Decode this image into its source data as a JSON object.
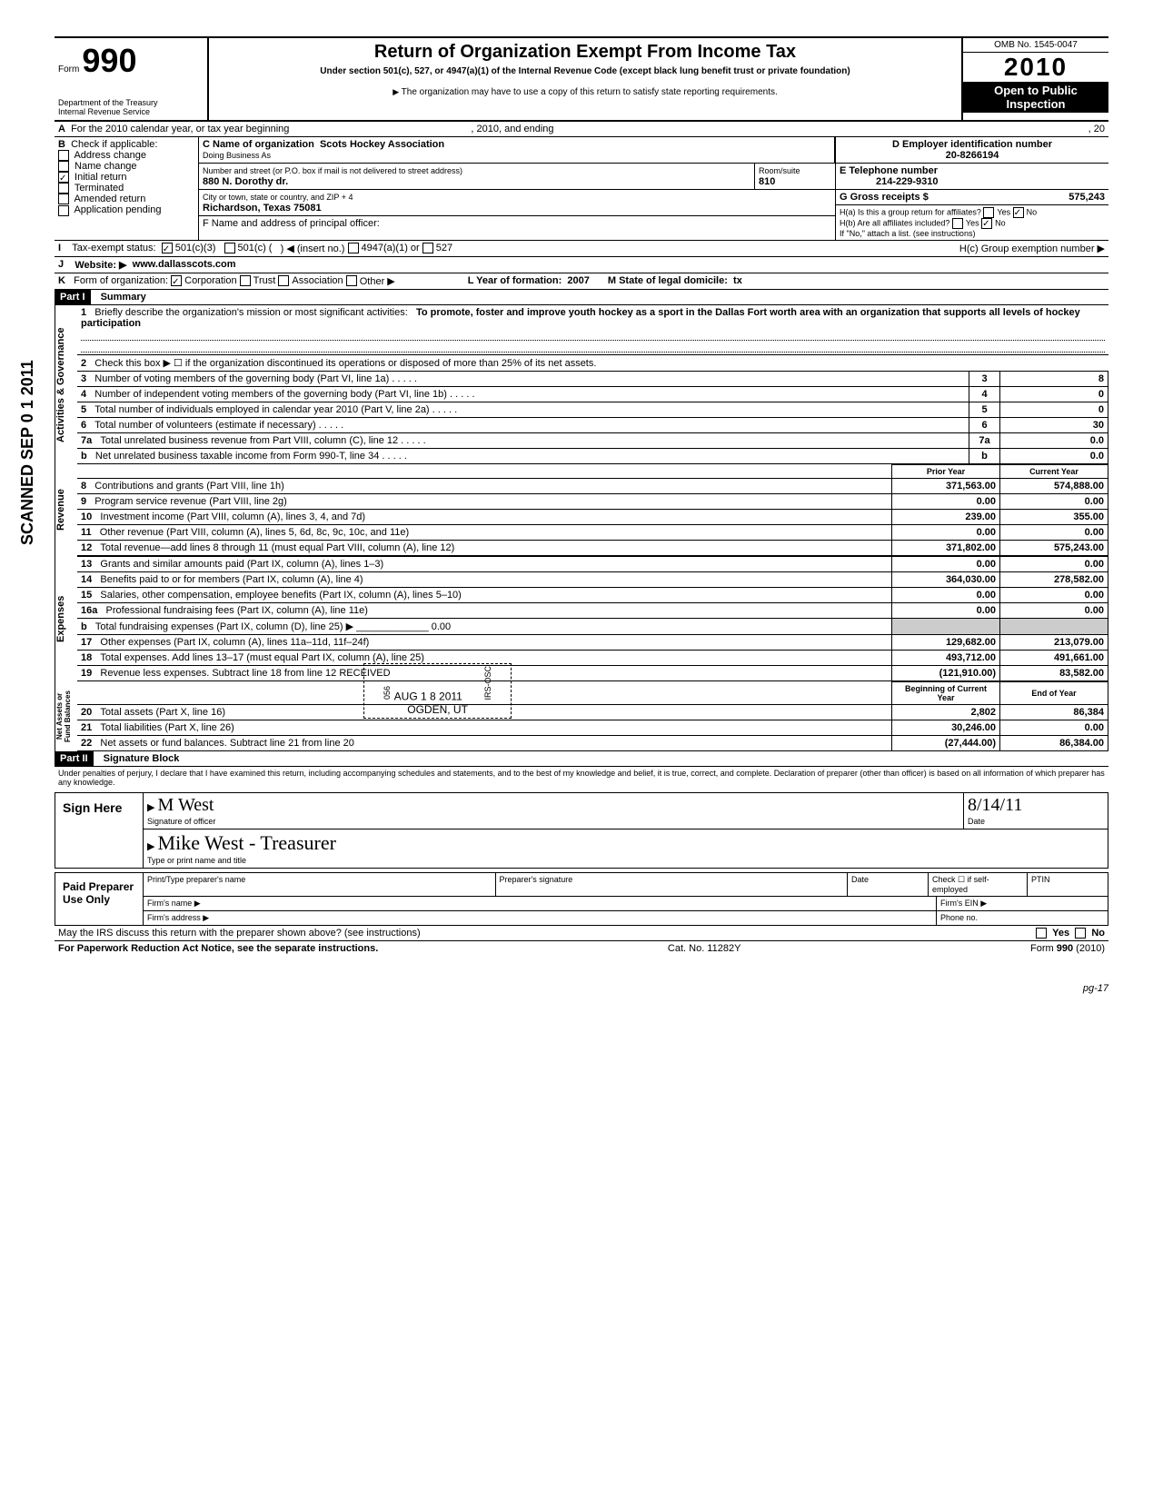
{
  "header": {
    "form_label": "Form",
    "form_number": "990",
    "title": "Return of Organization Exempt From Income Tax",
    "subtitle": "Under section 501(c), 527, or 4947(a)(1) of the Internal Revenue Code (except black lung benefit trust or private foundation)",
    "dept": "Department of the Treasury\nInternal Revenue Service",
    "copy_note": "The organization may have to use a copy of this return to satisfy state reporting requirements.",
    "omb": "OMB No. 1545-0047",
    "year": "2010",
    "open": "Open to Public",
    "inspection": "Inspection"
  },
  "scanned": "SCANNED SEP 0 1 2011",
  "lineA": {
    "text": "For the 2010 calendar year, or tax year beginning",
    "mid": ", 2010, and ending",
    "end": ", 20"
  },
  "B": {
    "label": "Check if applicable:",
    "opts": [
      "Address change",
      "Name change",
      "Initial return",
      "Terminated",
      "Amended return",
      "Application pending"
    ],
    "checked_index": 2
  },
  "C": {
    "name_label": "C Name of organization",
    "name": "Scots Hockey Association",
    "dba_label": "Doing Business As",
    "addr_label": "Number and street (or P.O. box if mail is not delivered to street address)",
    "addr": "880 N. Dorothy dr.",
    "room_label": "Room/suite",
    "room": "810",
    "city_label": "City or town, state or country, and ZIP + 4",
    "city": "Richardson, Texas 75081",
    "F_label": "F  Name and address of principal officer:"
  },
  "D": {
    "label": "D  Employer identification number",
    "value": "20-8266194"
  },
  "E": {
    "label": "E  Telephone number",
    "value": "214-229-9310"
  },
  "G": {
    "label": "G  Gross receipts $",
    "value": "575,243"
  },
  "H": {
    "a": "H(a) Is this a group return for affiliates?",
    "b": "H(b) Are all affiliates included?",
    "no_note": "If \"No,\" attach a list. (see instructions)",
    "c": "H(c)  Group exemption number ▶",
    "yes": "Yes",
    "no": "No"
  },
  "I": {
    "label": "Tax-exempt status:",
    "opt1": "501(c)(3)",
    "opt2": "501(c) (",
    "insert": ") ◀ (insert no.)",
    "opt3": "4947(a)(1) or",
    "opt4": "527"
  },
  "J": {
    "label": "Website: ▶",
    "value": "www.dallasscots.com"
  },
  "K": {
    "label": "Form of organization:",
    "corp": "Corporation",
    "trust": "Trust",
    "assoc": "Association",
    "other": "Other ▶",
    "L": "L  Year of formation:",
    "Lval": "2007",
    "M": "M State of legal domicile:",
    "Mval": "tx"
  },
  "part1": {
    "title": "Part I",
    "subtitle": "Summary",
    "line1_label": "Briefly describe the organization's mission or most significant activities:",
    "line1_text": "To promote, foster and improve youth hockey as a sport in the Dallas Fort worth area with an organization that supports all levels of hockey participation",
    "line2": "Check this box ▶ ☐ if the organization discontinued its operations or disposed of more than 25% of its net assets.",
    "rows_ag": [
      {
        "n": "3",
        "label": "Number of voting members of the governing body (Part VI, line 1a)",
        "v": "8"
      },
      {
        "n": "4",
        "label": "Number of independent voting members of the governing body (Part VI, line 1b)",
        "v": "0"
      },
      {
        "n": "5",
        "label": "Total number of individuals employed in calendar year 2010 (Part V, line 2a)",
        "v": "0"
      },
      {
        "n": "6",
        "label": "Total number of volunteers (estimate if necessary)",
        "v": "30"
      },
      {
        "n": "7a",
        "label": "Total unrelated business revenue from Part VIII, column (C), line 12",
        "v": "0.0"
      },
      {
        "n": "b",
        "label": "Net unrelated business taxable income from Form 990-T, line 34",
        "v": "0.0"
      }
    ],
    "prior": "Prior Year",
    "current": "Current Year",
    "rows_rev": [
      {
        "n": "8",
        "label": "Contributions and grants (Part VIII, line 1h)",
        "p": "371,563.00",
        "c": "574,888.00"
      },
      {
        "n": "9",
        "label": "Program service revenue (Part VIII, line 2g)",
        "p": "0.00",
        "c": "0.00"
      },
      {
        "n": "10",
        "label": "Investment income (Part VIII, column (A), lines 3, 4, and 7d)",
        "p": "239.00",
        "c": "355.00"
      },
      {
        "n": "11",
        "label": "Other revenue (Part VIII, column (A), lines 5, 6d, 8c, 9c, 10c, and 11e)",
        "p": "0.00",
        "c": "0.00"
      },
      {
        "n": "12",
        "label": "Total revenue—add lines 8 through 11 (must equal Part VIII, column (A), line 12)",
        "p": "371,802.00",
        "c": "575,243.00"
      }
    ],
    "rows_exp": [
      {
        "n": "13",
        "label": "Grants and similar amounts paid (Part IX, column (A), lines 1–3)",
        "p": "0.00",
        "c": "0.00"
      },
      {
        "n": "14",
        "label": "Benefits paid to or for members (Part IX, column (A), line 4)",
        "p": "364,030.00",
        "c": "278,582.00"
      },
      {
        "n": "15",
        "label": "Salaries, other compensation, employee benefits (Part IX, column (A), lines 5–10)",
        "p": "0.00",
        "c": "0.00"
      },
      {
        "n": "16a",
        "label": "Professional fundraising fees (Part IX, column (A), line 11e)",
        "p": "0.00",
        "c": "0.00"
      },
      {
        "n": "b",
        "label": "Total fundraising expenses (Part IX, column (D), line 25) ▶ _____________ 0.00",
        "p": "",
        "c": ""
      },
      {
        "n": "17",
        "label": "Other expenses (Part IX, column (A), lines 11a–11d, 11f–24f)",
        "p": "129,682.00",
        "c": "213,079.00"
      },
      {
        "n": "18",
        "label": "Total expenses. Add lines 13–17 (must equal Part IX, column (A), line 25)",
        "p": "493,712.00",
        "c": "491,661.00"
      },
      {
        "n": "19",
        "label": "Revenue less expenses. Subtract line 18 from line 12 RECEIVED",
        "p": "(121,910.00)",
        "c": "83,582.00"
      }
    ],
    "begin": "Beginning of Current Year",
    "end": "End of Year",
    "rows_net": [
      {
        "n": "20",
        "label": "Total assets (Part X, line 16)",
        "p": "2,802",
        "c": "86,384"
      },
      {
        "n": "21",
        "label": "Total liabilities (Part X, line 26)",
        "p": "30,246.00",
        "c": "0.00"
      },
      {
        "n": "22",
        "label": "Net assets or fund balances. Subtract line 21 from line 20",
        "p": "(27,444.00)",
        "c": "86,384.00"
      }
    ],
    "stamp_date": "AUG 1 8 2011",
    "stamp_loc": "OGDEN, UT",
    "stamp_side": "IRS-OSC",
    "stamp_056": "056"
  },
  "vlabels": {
    "ag": "Activities & Governance",
    "rev": "Revenue",
    "exp": "Expenses",
    "net": "Net Assets or\nFund Balances"
  },
  "part2": {
    "title": "Part II",
    "subtitle": "Signature Block",
    "decl": "Under penalties of perjury, I declare that I have examined this return, including accompanying schedules and statements, and to the best of my knowledge and belief, it is true, correct, and complete. Declaration of preparer (other than officer) is based on all information of which preparer has any knowledge.",
    "sign_here": "Sign Here",
    "sig_of_officer": "Signature of officer",
    "date_label": "Date",
    "sig_script": "M  West",
    "sig_date": "8/14/11",
    "name_script": "Mike West  - Treasurer",
    "type_name": "Type or print name and title",
    "paid": "Paid Preparer Use Only",
    "col1": "Print/Type preparer's name",
    "col2": "Preparer's signature",
    "col3": "Date",
    "check_if": "Check ☐ if self-employed",
    "ptin": "PTIN",
    "firm_name": "Firm's name    ▶",
    "firm_ein": "Firm's EIN ▶",
    "firm_addr": "Firm's address ▶",
    "phone": "Phone no.",
    "may_irs": "May the IRS discuss this return with the preparer shown above? (see instructions)",
    "yes": "Yes",
    "no": "No"
  },
  "footer": {
    "left": "For Paperwork Reduction Act Notice, see the separate instructions.",
    "mid": "Cat. No. 11282Y",
    "right": "Form 990 (2010)",
    "pg": "pg-17"
  }
}
